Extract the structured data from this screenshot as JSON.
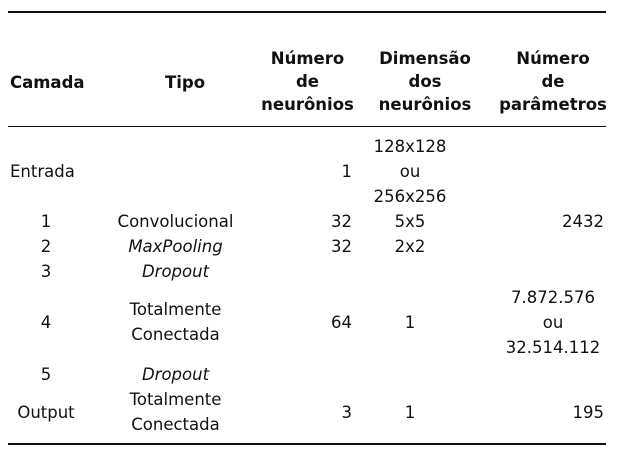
{
  "headers": {
    "camada": "Camada",
    "tipo": "Tipo",
    "num_neuronios": [
      "Número",
      "de",
      "neurônios"
    ],
    "dim_neuronios": [
      "Dimensão",
      "dos",
      "neurônios"
    ],
    "num_parametros": [
      "Número",
      "de",
      "parâmetros"
    ]
  },
  "rows": [
    {
      "camada": "Entrada",
      "tipo": "",
      "neuronios": "1",
      "dimensao": [
        "128x128",
        "ou",
        "256x256"
      ],
      "parametros": ""
    },
    {
      "camada": "1",
      "tipo": "Convolucional",
      "neuronios": "32",
      "dimensao": [
        "5x5"
      ],
      "parametros": "2432"
    },
    {
      "camada": "2",
      "tipo": "MaxPooling",
      "neuronios": "32",
      "dimensao": [
        "2x2"
      ],
      "parametros": ""
    },
    {
      "camada": "3",
      "tipo": "Dropout",
      "neuronios": "",
      "dimensao": [],
      "parametros": ""
    },
    {
      "camada": "4",
      "tipo": [
        "Totalmente",
        "Conectada"
      ],
      "neuronios": "64",
      "dimensao": [
        "1"
      ],
      "parametros": [
        "7.872.576",
        "ou",
        "32.514.112"
      ]
    },
    {
      "camada": "5",
      "tipo": "Dropout",
      "neuronios": "",
      "dimensao": [],
      "parametros": ""
    },
    {
      "camada": "Output",
      "tipo": [
        "Totalmente",
        "Conectada"
      ],
      "neuronios": "3",
      "dimensao": [
        "1"
      ],
      "parametros": "195"
    }
  ]
}
